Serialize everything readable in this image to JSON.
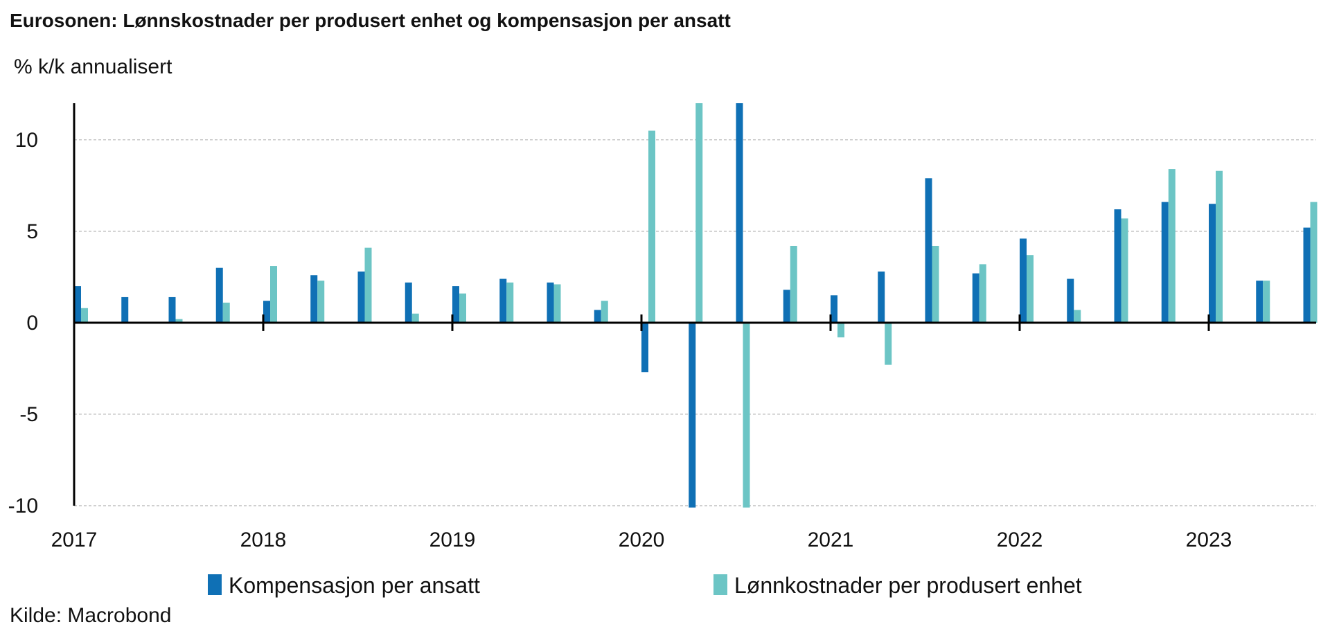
{
  "chart_data": {
    "type": "bar",
    "title": "Eurosonen: Lønnskostnader per produsert enhet og kompensasjon per ansatt",
    "subtitle": "% k/k annualisert",
    "source": "Kilde: Macrobond",
    "x_labels": [
      "2017",
      "2018",
      "2019",
      "2020",
      "2021",
      "2022",
      "2023"
    ],
    "categories": [
      "2017Q1",
      "2017Q2",
      "2017Q3",
      "2017Q4",
      "2018Q1",
      "2018Q2",
      "2018Q3",
      "2018Q4",
      "2019Q1",
      "2019Q2",
      "2019Q3",
      "2019Q4",
      "2020Q1",
      "2020Q2",
      "2020Q3",
      "2020Q4",
      "2021Q1",
      "2021Q2",
      "2021Q3",
      "2021Q4",
      "2022Q1",
      "2022Q2",
      "2022Q3",
      "2022Q4",
      "2023Q1",
      "2023Q2",
      "2023Q3"
    ],
    "ylim": [
      -10,
      12
    ],
    "yticks": [
      -10,
      -5,
      0,
      5,
      10
    ],
    "grid": true,
    "legend_position": "bottom",
    "series": [
      {
        "name": "Kompensasjon per ansatt",
        "color": "#0f70b5",
        "values": [
          2.0,
          1.4,
          1.4,
          3.0,
          1.2,
          2.6,
          2.8,
          2.2,
          2.0,
          2.4,
          2.2,
          0.7,
          -2.7,
          -10.1,
          12.0,
          1.8,
          1.5,
          2.8,
          7.9,
          2.7,
          4.6,
          2.4,
          6.2,
          6.6,
          6.5,
          2.3,
          5.2
        ]
      },
      {
        "name": "Lønnkostnader per produsert enhet",
        "color": "#6cc5c5",
        "values": [
          0.8,
          0.0,
          0.2,
          1.1,
          3.1,
          2.3,
          4.1,
          0.5,
          1.6,
          2.2,
          2.1,
          1.2,
          10.5,
          12.0,
          -10.1,
          4.2,
          -0.8,
          -2.3,
          4.2,
          3.2,
          3.7,
          0.7,
          5.7,
          8.4,
          8.3,
          2.3,
          6.6
        ]
      }
    ]
  }
}
